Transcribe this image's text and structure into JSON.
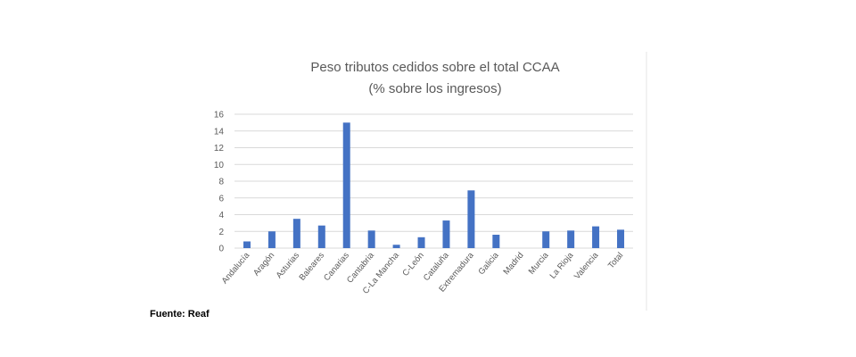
{
  "chart_data": {
    "type": "bar",
    "title": "Peso tributos cedidos sobre el total CCAA",
    "subtitle": "(% sobre los ingresos)",
    "categories": [
      "Andalucía",
      "Aragón",
      "Asturias",
      "Baleares",
      "Canarias",
      "Cantabria",
      "C-La Mancha",
      "C-León",
      "Cataluña",
      "Extremadura",
      "Galicia",
      "Madrid",
      "Murcia",
      "La Rioja",
      "Valencia",
      "Total"
    ],
    "values": [
      0.8,
      2.0,
      3.5,
      2.7,
      15.0,
      2.1,
      0.4,
      1.3,
      3.3,
      6.9,
      1.6,
      0.0,
      2.0,
      2.1,
      2.6,
      2.2
    ],
    "y_ticks": [
      "0",
      "2",
      "4",
      "6",
      "8",
      "10",
      "12",
      "14",
      "16"
    ],
    "ylim": [
      0,
      16
    ],
    "grid": true,
    "bar_color": "#4472c4"
  },
  "source": "Fuente: Reaf"
}
